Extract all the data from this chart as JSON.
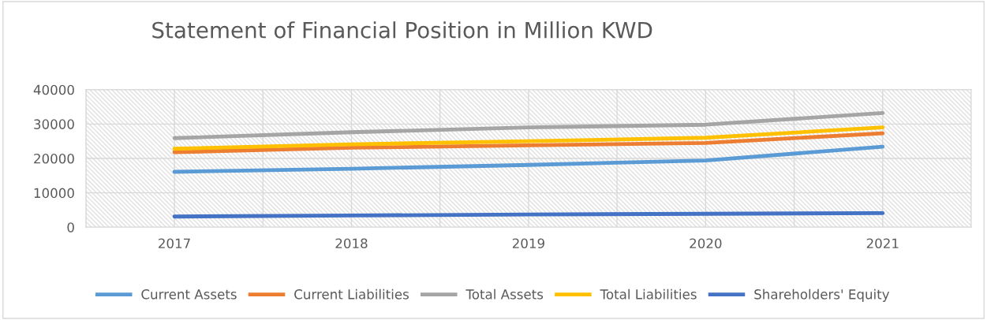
{
  "chart_data": {
    "type": "line",
    "title": "Statement of Financial Position in Million KWD",
    "categories": [
      "2017",
      "2018",
      "2019",
      "2020",
      "2021"
    ],
    "series": [
      {
        "name": "Current Assets",
        "color": "#5b9bd5",
        "values": [
          16100,
          17000,
          18100,
          19400,
          23400
        ]
      },
      {
        "name": "Current Liabilities",
        "color": "#ed7d31",
        "values": [
          21800,
          23100,
          23800,
          24500,
          27300
        ]
      },
      {
        "name": "Total Assets",
        "color": "#a5a5a5",
        "values": [
          25900,
          27600,
          29000,
          29800,
          33200
        ]
      },
      {
        "name": "Total Liabilities",
        "color": "#ffc000",
        "values": [
          22800,
          24100,
          25000,
          26000,
          29000
        ]
      },
      {
        "name": "Shareholders' Equity",
        "color": "#4472c4",
        "values": [
          3100,
          3400,
          3700,
          3900,
          4100
        ]
      }
    ],
    "ylim": [
      0,
      40000
    ],
    "yticks": [
      0,
      10000,
      20000,
      30000,
      40000
    ],
    "grid": true,
    "legend": "bottom",
    "marker": "none",
    "line_style": "solid"
  }
}
